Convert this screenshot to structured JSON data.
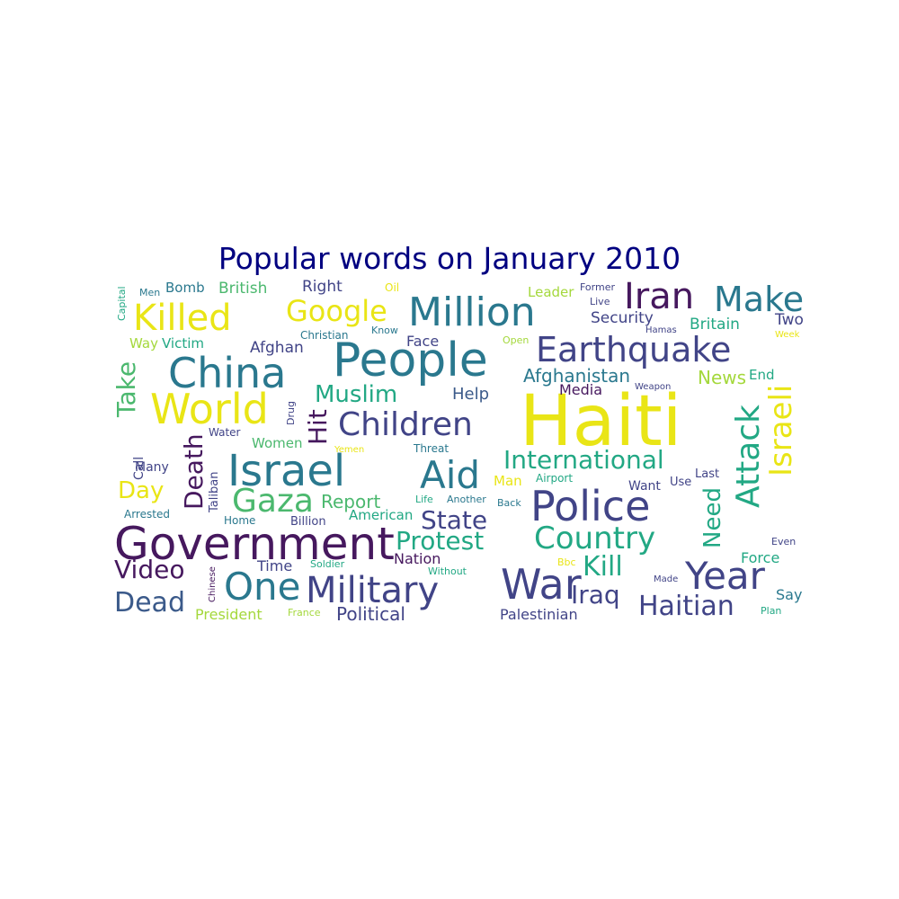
{
  "title": "Popular words on January 2010",
  "colors": {
    "title": "#000080",
    "purple": "#46185e",
    "indigo": "#414487",
    "slate": "#3b5a8a",
    "teal": "#2a788e",
    "sea": "#22a884",
    "green": "#4bb86e",
    "lime": "#a4d83c",
    "yellow": "#e9e516",
    "dark": "#2c6f8a"
  },
  "words": [
    {
      "text": "Haiti",
      "color": "yellow",
      "vertical": false
    },
    {
      "text": "People",
      "color": "teal",
      "vertical": false
    },
    {
      "text": "Government",
      "color": "purple",
      "vertical": false
    },
    {
      "text": "Israel",
      "color": "teal",
      "vertical": false
    },
    {
      "text": "Aid",
      "color": "teal",
      "vertical": false
    },
    {
      "text": "China",
      "color": "teal",
      "vertical": false
    },
    {
      "text": "World",
      "color": "yellow",
      "vertical": false
    },
    {
      "text": "Earthquake",
      "color": "indigo",
      "vertical": false
    },
    {
      "text": "Military",
      "color": "indigo",
      "vertical": false
    },
    {
      "text": "One",
      "color": "teal",
      "vertical": false
    },
    {
      "text": "Police",
      "color": "indigo",
      "vertical": false
    },
    {
      "text": "War",
      "color": "indigo",
      "vertical": false
    },
    {
      "text": "Year",
      "color": "indigo",
      "vertical": false
    },
    {
      "text": "Million",
      "color": "teal",
      "vertical": false
    },
    {
      "text": "Children",
      "color": "indigo",
      "vertical": false
    },
    {
      "text": "Killed",
      "color": "yellow",
      "vertical": false
    },
    {
      "text": "Attack",
      "color": "sea",
      "vertical": true
    },
    {
      "text": "Israeli",
      "color": "yellow",
      "vertical": true
    },
    {
      "text": "Make",
      "color": "teal",
      "vertical": false
    },
    {
      "text": "Iran",
      "color": "purple",
      "vertical": false
    },
    {
      "text": "International",
      "color": "sea",
      "vertical": false
    },
    {
      "text": "Gaza",
      "color": "green",
      "vertical": false
    },
    {
      "text": "Country",
      "color": "sea",
      "vertical": false
    },
    {
      "text": "Protest",
      "color": "sea",
      "vertical": false
    },
    {
      "text": "Google",
      "color": "yellow",
      "vertical": false
    },
    {
      "text": "Haitian",
      "color": "indigo",
      "vertical": false
    },
    {
      "text": "Muslim",
      "color": "sea",
      "vertical": false
    },
    {
      "text": "State",
      "color": "indigo",
      "vertical": false
    },
    {
      "text": "Kill",
      "color": "sea",
      "vertical": false
    },
    {
      "text": "Iraq",
      "color": "indigo",
      "vertical": false
    },
    {
      "text": "Dead",
      "color": "slate",
      "vertical": false
    },
    {
      "text": "Video",
      "color": "purple",
      "vertical": false
    },
    {
      "text": "Death",
      "color": "purple",
      "vertical": true
    },
    {
      "text": "Take",
      "color": "green",
      "vertical": true
    },
    {
      "text": "Hit",
      "color": "purple",
      "vertical": true
    },
    {
      "text": "Day",
      "color": "yellow",
      "vertical": false
    },
    {
      "text": "Need",
      "color": "sea",
      "vertical": true
    },
    {
      "text": "Help",
      "color": "slate",
      "vertical": false
    },
    {
      "text": "Afghanistan",
      "color": "teal",
      "vertical": false
    },
    {
      "text": "Political",
      "color": "indigo",
      "vertical": false
    },
    {
      "text": "Report",
      "color": "green",
      "vertical": false
    },
    {
      "text": "News",
      "color": "lime",
      "vertical": false
    },
    {
      "text": "Security",
      "color": "indigo",
      "vertical": false
    },
    {
      "text": "Britain",
      "color": "sea",
      "vertical": false
    },
    {
      "text": "British",
      "color": "green",
      "vertical": false
    },
    {
      "text": "Right",
      "color": "indigo",
      "vertical": false
    },
    {
      "text": "Afghan",
      "color": "indigo",
      "vertical": false
    },
    {
      "text": "Face",
      "color": "indigo",
      "vertical": false
    },
    {
      "text": "Media",
      "color": "purple",
      "vertical": false
    },
    {
      "text": "Nation",
      "color": "purple",
      "vertical": false
    },
    {
      "text": "Time",
      "color": "indigo",
      "vertical": false
    },
    {
      "text": "Force",
      "color": "sea",
      "vertical": false
    },
    {
      "text": "Say",
      "color": "teal",
      "vertical": false
    },
    {
      "text": "Two",
      "color": "indigo",
      "vertical": false
    },
    {
      "text": "President",
      "color": "lime",
      "vertical": false
    },
    {
      "text": "Palestinian",
      "color": "indigo",
      "vertical": false
    },
    {
      "text": "Women",
      "color": "green",
      "vertical": false
    },
    {
      "text": "American",
      "color": "sea",
      "vertical": false
    },
    {
      "text": "Victim",
      "color": "sea",
      "vertical": false
    },
    {
      "text": "Bomb",
      "color": "teal",
      "vertical": false
    },
    {
      "text": "Leader",
      "color": "lime",
      "vertical": false
    },
    {
      "text": "End",
      "color": "sea",
      "vertical": false
    },
    {
      "text": "Way",
      "color": "lime",
      "vertical": false
    },
    {
      "text": "Many",
      "color": "indigo",
      "vertical": false
    },
    {
      "text": "Call",
      "color": "indigo",
      "vertical": true
    },
    {
      "text": "Man",
      "color": "yellow",
      "vertical": false
    },
    {
      "text": "Want",
      "color": "indigo",
      "vertical": false
    },
    {
      "text": "Use",
      "color": "indigo",
      "vertical": false
    },
    {
      "text": "Last",
      "color": "indigo",
      "vertical": false
    },
    {
      "text": "Billion",
      "color": "indigo",
      "vertical": false
    },
    {
      "text": "Arrested",
      "color": "teal",
      "vertical": false
    },
    {
      "text": "Home",
      "color": "teal",
      "vertical": false
    },
    {
      "text": "Taliban",
      "color": "indigo",
      "vertical": true
    },
    {
      "text": "Water",
      "color": "indigo",
      "vertical": false
    },
    {
      "text": "Threat",
      "color": "teal",
      "vertical": false
    },
    {
      "text": "Airport",
      "color": "sea",
      "vertical": false
    },
    {
      "text": "Back",
      "color": "teal",
      "vertical": false
    },
    {
      "text": "Life",
      "color": "sea",
      "vertical": false
    },
    {
      "text": "Another",
      "color": "teal",
      "vertical": false
    },
    {
      "text": "Christian",
      "color": "teal",
      "vertical": false
    },
    {
      "text": "Know",
      "color": "teal",
      "vertical": false
    },
    {
      "text": "Open",
      "color": "lime",
      "vertical": false
    },
    {
      "text": "Former",
      "color": "indigo",
      "vertical": false
    },
    {
      "text": "Live",
      "color": "indigo",
      "vertical": false
    },
    {
      "text": "Hamas",
      "color": "indigo",
      "vertical": false
    },
    {
      "text": "Week",
      "color": "yellow",
      "vertical": false
    },
    {
      "text": "Weapon",
      "color": "indigo",
      "vertical": false
    },
    {
      "text": "Oil",
      "color": "yellow",
      "vertical": false
    },
    {
      "text": "Men",
      "color": "teal",
      "vertical": false
    },
    {
      "text": "Capital",
      "color": "sea",
      "vertical": true
    },
    {
      "text": "Drug",
      "color": "indigo",
      "vertical": true
    },
    {
      "text": "Yemen",
      "color": "yellow",
      "vertical": false
    },
    {
      "text": "Soldier",
      "color": "sea",
      "vertical": false
    },
    {
      "text": "Without",
      "color": "sea",
      "vertical": false
    },
    {
      "text": "Bbc",
      "color": "yellow",
      "vertical": false
    },
    {
      "text": "Made",
      "color": "indigo",
      "vertical": false
    },
    {
      "text": "Even",
      "color": "indigo",
      "vertical": false
    },
    {
      "text": "Plan",
      "color": "sea",
      "vertical": false
    },
    {
      "text": "France",
      "color": "lime",
      "vertical": false
    },
    {
      "text": "Chinese",
      "color": "purple",
      "vertical": true
    }
  ]
}
